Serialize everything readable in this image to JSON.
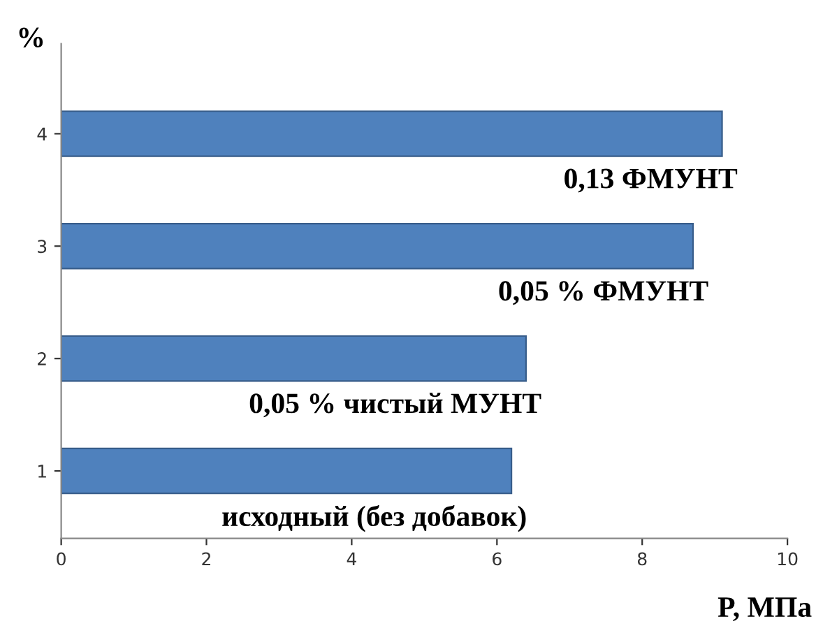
{
  "chart_data": {
    "type": "bar",
    "orientation": "horizontal",
    "categories": [
      "4",
      "3",
      "2",
      "1"
    ],
    "values": [
      9.1,
      8.7,
      6.4,
      6.2
    ],
    "color": "#4f81bd",
    "xlim": [
      0,
      10
    ],
    "xticks": [
      0,
      2,
      4,
      6,
      8,
      10
    ],
    "ylabel": "%",
    "xlabel": "P, МПа",
    "grid": false,
    "legend": false,
    "annotations": [
      {
        "text": "0,13 ФМУНТ",
        "x": 9.1,
        "y": "4"
      },
      {
        "text": "0,05 % ФМУНТ",
        "x": 8.7,
        "y": "3"
      },
      {
        "text": "0,05 % чистый МУНТ",
        "x": 6.4,
        "y": "2"
      },
      {
        "text": "исходный (без добавок)",
        "x": 6.2,
        "y": "1"
      }
    ]
  }
}
